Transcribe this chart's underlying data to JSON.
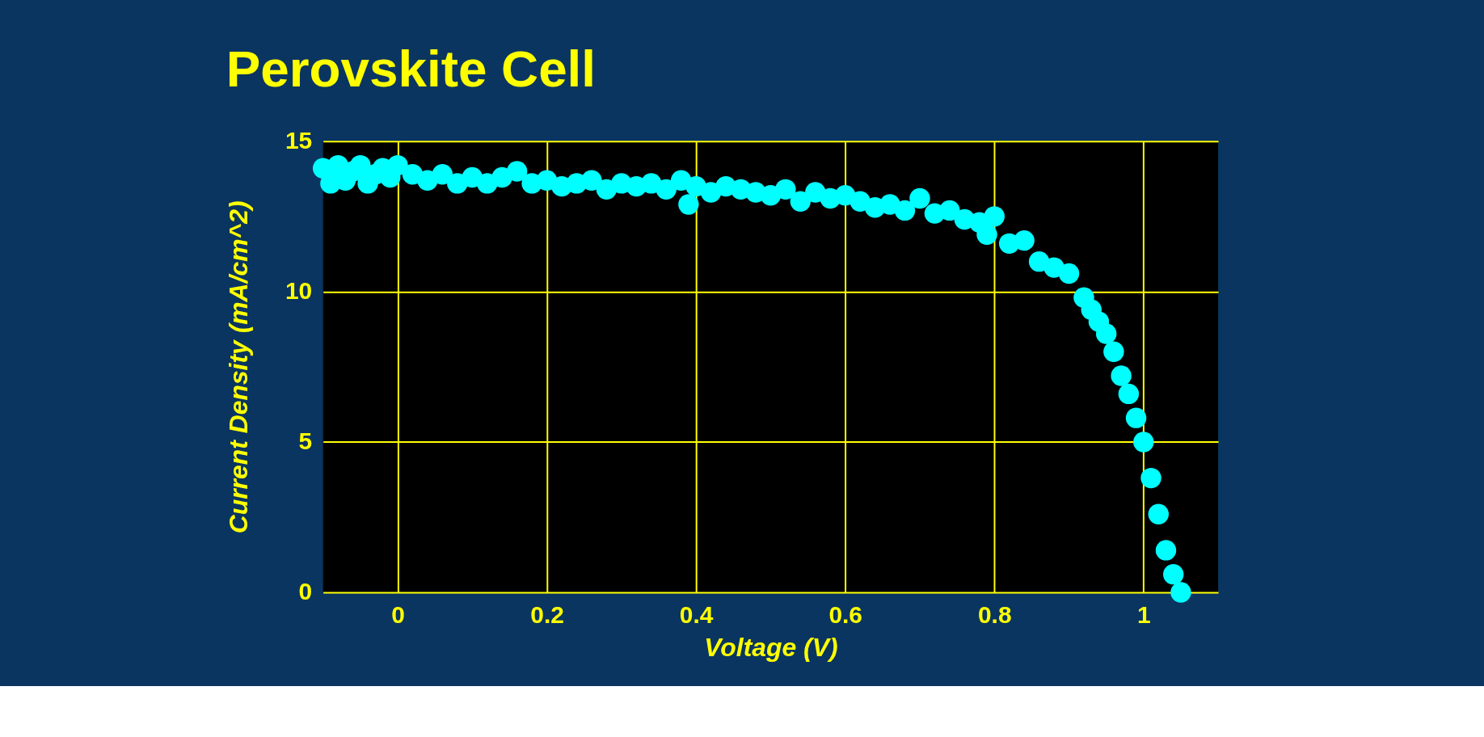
{
  "chart_data": {
    "type": "scatter",
    "title": "Perovskite Cell",
    "xlabel": "Voltage (V)",
    "ylabel": "Current Density (mA/cm^2)",
    "xlim": [
      -0.1,
      1.1
    ],
    "xticks": [
      0,
      0.2,
      0.4,
      0.6,
      0.8,
      1
    ],
    "ylim": [
      0,
      15
    ],
    "yticks": [
      0,
      5,
      10,
      15
    ],
    "grid": true,
    "marker": "circle",
    "series": [
      {
        "color": "#00ffff",
        "x": [
          -0.1,
          -0.09,
          -0.08,
          -0.07,
          -0.06,
          -0.05,
          -0.04,
          -0.03,
          -0.02,
          -0.01,
          0,
          0.02,
          0.04,
          0.06,
          0.08,
          0.1,
          0.12,
          0.14,
          0.16,
          0.18,
          0.2,
          0.22,
          0.24,
          0.26,
          0.28,
          0.3,
          0.32,
          0.34,
          0.36,
          0.38,
          0.39,
          0.4,
          0.42,
          0.44,
          0.46,
          0.48,
          0.5,
          0.52,
          0.54,
          0.56,
          0.58,
          0.6,
          0.62,
          0.64,
          0.66,
          0.68,
          0.7,
          0.72,
          0.74,
          0.76,
          0.78,
          0.79,
          0.8,
          0.82,
          0.84,
          0.86,
          0.88,
          0.9,
          0.92,
          0.93,
          0.94,
          0.95,
          0.96,
          0.97,
          0.98,
          0.99,
          1.0,
          1.01,
          1.02,
          1.03,
          1.04,
          1.05
        ],
        "values": [
          14.1,
          13.6,
          14.2,
          13.7,
          14.0,
          14.2,
          13.6,
          13.9,
          14.1,
          13.8,
          14.2,
          13.9,
          13.7,
          13.9,
          13.6,
          13.8,
          13.6,
          13.8,
          14.0,
          13.6,
          13.7,
          13.5,
          13.6,
          13.7,
          13.4,
          13.6,
          13.5,
          13.6,
          13.4,
          13.7,
          12.9,
          13.5,
          13.3,
          13.5,
          13.4,
          13.3,
          13.2,
          13.4,
          13.0,
          13.3,
          13.1,
          13.2,
          13.0,
          12.8,
          12.9,
          12.7,
          13.1,
          12.6,
          12.7,
          12.4,
          12.3,
          11.9,
          12.5,
          11.6,
          11.7,
          11.0,
          10.8,
          10.6,
          9.8,
          9.4,
          9.0,
          8.6,
          8.0,
          7.2,
          6.6,
          5.8,
          5.0,
          3.8,
          2.6,
          1.4,
          0.6,
          0.0
        ]
      }
    ]
  }
}
